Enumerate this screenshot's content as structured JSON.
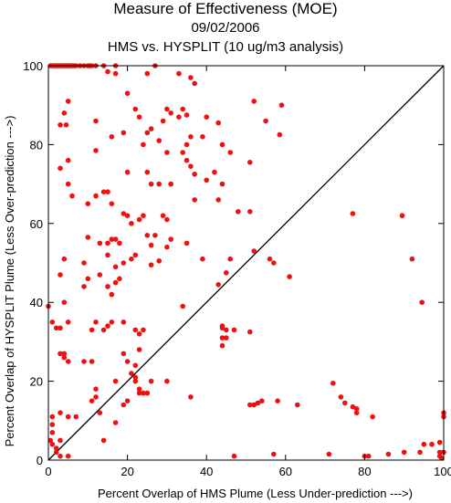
{
  "chart_data": {
    "type": "scatter",
    "title": "Measure of Effectiveness (MOE)",
    "subtitle": "09/02/2006",
    "subtitle2": "HMS vs. HYSPLIT  (10 ug/m3 analysis)",
    "xlabel": "Percent Overlap of HMS Plume (Less Under-prediction --->)",
    "ylabel": "Percent Overlap of HYSPLIT Plume (Less Over-prediction --->)",
    "xlim": [
      0,
      100
    ],
    "ylim": [
      0,
      100
    ],
    "xticks": [
      "0",
      "20",
      "40",
      "60",
      "80",
      "100"
    ],
    "yticks": [
      "0",
      "20",
      "40",
      "60",
      "80",
      "100"
    ],
    "grid": false,
    "point_color": "#ee1111",
    "reference_line": "y = x",
    "points": [
      [
        0.5,
        100
      ],
      [
        1,
        100
      ],
      [
        1.5,
        100
      ],
      [
        2,
        100
      ],
      [
        2.5,
        100
      ],
      [
        3,
        100
      ],
      [
        3.5,
        100
      ],
      [
        4,
        100
      ],
      [
        4.5,
        100
      ],
      [
        5,
        100
      ],
      [
        5.5,
        100
      ],
      [
        6,
        100
      ],
      [
        6.5,
        100
      ],
      [
        7,
        100
      ],
      [
        8,
        100
      ],
      [
        9,
        100
      ],
      [
        10,
        100
      ],
      [
        10.5,
        100
      ],
      [
        11,
        100
      ],
      [
        12,
        100
      ],
      [
        14,
        100
      ],
      [
        17,
        100
      ],
      [
        27,
        100
      ],
      [
        15,
        98.5
      ],
      [
        17,
        98
      ],
      [
        25,
        98
      ],
      [
        33,
        98
      ],
      [
        36,
        97
      ],
      [
        20,
        93
      ],
      [
        37,
        95.5
      ],
      [
        5,
        91
      ],
      [
        4,
        88
      ],
      [
        4.5,
        85
      ],
      [
        3,
        85
      ],
      [
        12,
        86
      ],
      [
        22,
        89
      ],
      [
        23,
        87
      ],
      [
        29,
        86
      ],
      [
        30,
        89
      ],
      [
        31,
        88
      ],
      [
        33,
        87
      ],
      [
        34,
        89
      ],
      [
        35,
        87.5
      ],
      [
        40,
        87
      ],
      [
        43,
        85.5
      ],
      [
        52,
        91
      ],
      [
        55,
        86
      ],
      [
        59,
        90
      ],
      [
        58.5,
        82.5
      ],
      [
        16,
        82
      ],
      [
        19,
        83
      ],
      [
        25,
        83
      ],
      [
        26,
        84
      ],
      [
        28,
        81
      ],
      [
        24,
        80
      ],
      [
        35,
        80
      ],
      [
        36,
        82
      ],
      [
        39,
        82
      ],
      [
        44,
        80
      ],
      [
        46,
        78
      ],
      [
        12,
        78.5
      ],
      [
        30,
        78
      ],
      [
        3,
        74
      ],
      [
        5,
        76
      ],
      [
        34,
        78
      ],
      [
        35,
        76
      ],
      [
        36,
        74.5
      ],
      [
        37,
        72.5
      ],
      [
        51,
        75.5
      ],
      [
        5,
        70
      ],
      [
        6,
        67
      ],
      [
        10,
        65
      ],
      [
        12,
        67
      ],
      [
        14,
        68
      ],
      [
        15,
        68
      ],
      [
        16,
        65
      ],
      [
        20,
        73
      ],
      [
        25,
        73
      ],
      [
        26,
        70
      ],
      [
        28,
        70
      ],
      [
        31,
        70
      ],
      [
        40,
        71
      ],
      [
        43,
        66
      ],
      [
        44,
        70
      ],
      [
        42,
        73
      ],
      [
        48,
        63
      ],
      [
        37,
        66
      ],
      [
        20,
        62
      ],
      [
        21,
        60
      ],
      [
        23,
        61
      ],
      [
        29,
        62
      ],
      [
        30,
        61
      ],
      [
        19,
        62.5
      ],
      [
        24,
        62
      ],
      [
        51,
        63
      ],
      [
        10,
        56.5
      ],
      [
        13,
        55
      ],
      [
        15,
        55
      ],
      [
        15,
        52
      ],
      [
        16,
        56
      ],
      [
        17,
        56
      ],
      [
        18,
        55
      ],
      [
        19,
        50
      ],
      [
        21,
        51
      ],
      [
        22,
        52
      ],
      [
        25,
        57
      ],
      [
        26,
        54.5
      ],
      [
        27,
        57
      ],
      [
        30,
        54
      ],
      [
        31,
        56
      ],
      [
        35,
        55
      ],
      [
        26,
        49.5
      ],
      [
        28,
        50.5
      ],
      [
        4,
        51
      ],
      [
        9,
        50
      ],
      [
        10,
        46
      ],
      [
        13,
        47
      ],
      [
        15,
        44
      ],
      [
        16,
        42
      ],
      [
        17,
        49
      ],
      [
        18,
        46
      ],
      [
        17,
        45
      ],
      [
        11,
        33
      ],
      [
        12,
        35
      ],
      [
        14,
        33
      ],
      [
        15,
        34
      ],
      [
        16,
        35
      ],
      [
        19,
        35
      ],
      [
        3,
        47
      ],
      [
        4,
        40
      ],
      [
        5,
        35
      ],
      [
        9,
        44
      ],
      [
        1,
        35
      ],
      [
        2,
        33.5
      ],
      [
        3,
        33.5
      ],
      [
        0,
        39
      ],
      [
        23,
        32
      ],
      [
        24,
        33
      ],
      [
        22,
        33
      ],
      [
        34,
        39
      ],
      [
        39,
        51
      ],
      [
        43,
        44.5
      ],
      [
        45,
        47.5
      ],
      [
        46,
        51
      ],
      [
        52,
        53
      ],
      [
        56,
        51
      ],
      [
        57,
        50
      ],
      [
        61,
        46.5
      ],
      [
        44,
        34
      ],
      [
        44,
        33.5
      ],
      [
        45,
        33
      ],
      [
        44,
        31
      ],
      [
        45,
        31
      ],
      [
        44,
        29
      ],
      [
        47,
        33
      ],
      [
        51,
        32.5
      ],
      [
        3,
        27
      ],
      [
        4,
        27
      ],
      [
        4,
        26
      ],
      [
        5,
        25
      ],
      [
        9,
        25
      ],
      [
        11,
        25
      ],
      [
        19,
        27
      ],
      [
        20,
        25
      ],
      [
        22,
        24
      ],
      [
        23,
        28
      ],
      [
        21,
        22
      ],
      [
        17,
        20
      ],
      [
        12,
        18
      ],
      [
        12,
        16
      ],
      [
        11,
        15
      ],
      [
        13,
        12
      ],
      [
        19,
        14
      ],
      [
        20,
        15
      ],
      [
        22,
        21
      ],
      [
        22,
        20
      ],
      [
        23,
        18
      ],
      [
        23,
        17
      ],
      [
        24,
        17
      ],
      [
        25,
        17
      ],
      [
        26,
        20
      ],
      [
        30,
        20
      ],
      [
        36,
        16
      ],
      [
        3,
        12
      ],
      [
        5,
        11
      ],
      [
        7,
        11
      ],
      [
        1,
        11
      ],
      [
        1,
        9
      ],
      [
        1,
        7
      ],
      [
        0.5,
        5
      ],
      [
        1,
        4
      ],
      [
        2,
        3
      ],
      [
        3,
        5
      ],
      [
        5,
        1
      ],
      [
        3,
        1
      ],
      [
        2,
        2
      ],
      [
        14,
        5
      ],
      [
        17,
        9.5
      ],
      [
        51,
        14
      ],
      [
        52,
        14
      ],
      [
        53,
        14.5
      ],
      [
        54,
        15
      ],
      [
        58,
        15
      ],
      [
        63,
        14
      ],
      [
        72,
        19.5
      ],
      [
        74,
        16
      ],
      [
        75,
        14.5
      ],
      [
        77,
        13.5
      ],
      [
        78,
        13
      ],
      [
        78,
        12
      ],
      [
        82,
        11
      ],
      [
        80,
        1
      ],
      [
        81,
        1
      ],
      [
        86,
        1.5
      ],
      [
        47,
        1
      ],
      [
        57,
        1.5
      ],
      [
        71,
        1.5
      ],
      [
        90,
        2
      ],
      [
        94,
        2
      ],
      [
        95,
        4
      ],
      [
        97,
        4
      ],
      [
        99,
        2
      ],
      [
        100,
        2
      ],
      [
        99,
        1
      ],
      [
        99.5,
        0.5
      ],
      [
        100,
        11
      ],
      [
        100,
        12
      ],
      [
        99,
        4.5
      ],
      [
        77,
        62.5
      ],
      [
        89.5,
        62
      ],
      [
        92,
        51
      ],
      [
        94.5,
        40
      ]
    ]
  }
}
